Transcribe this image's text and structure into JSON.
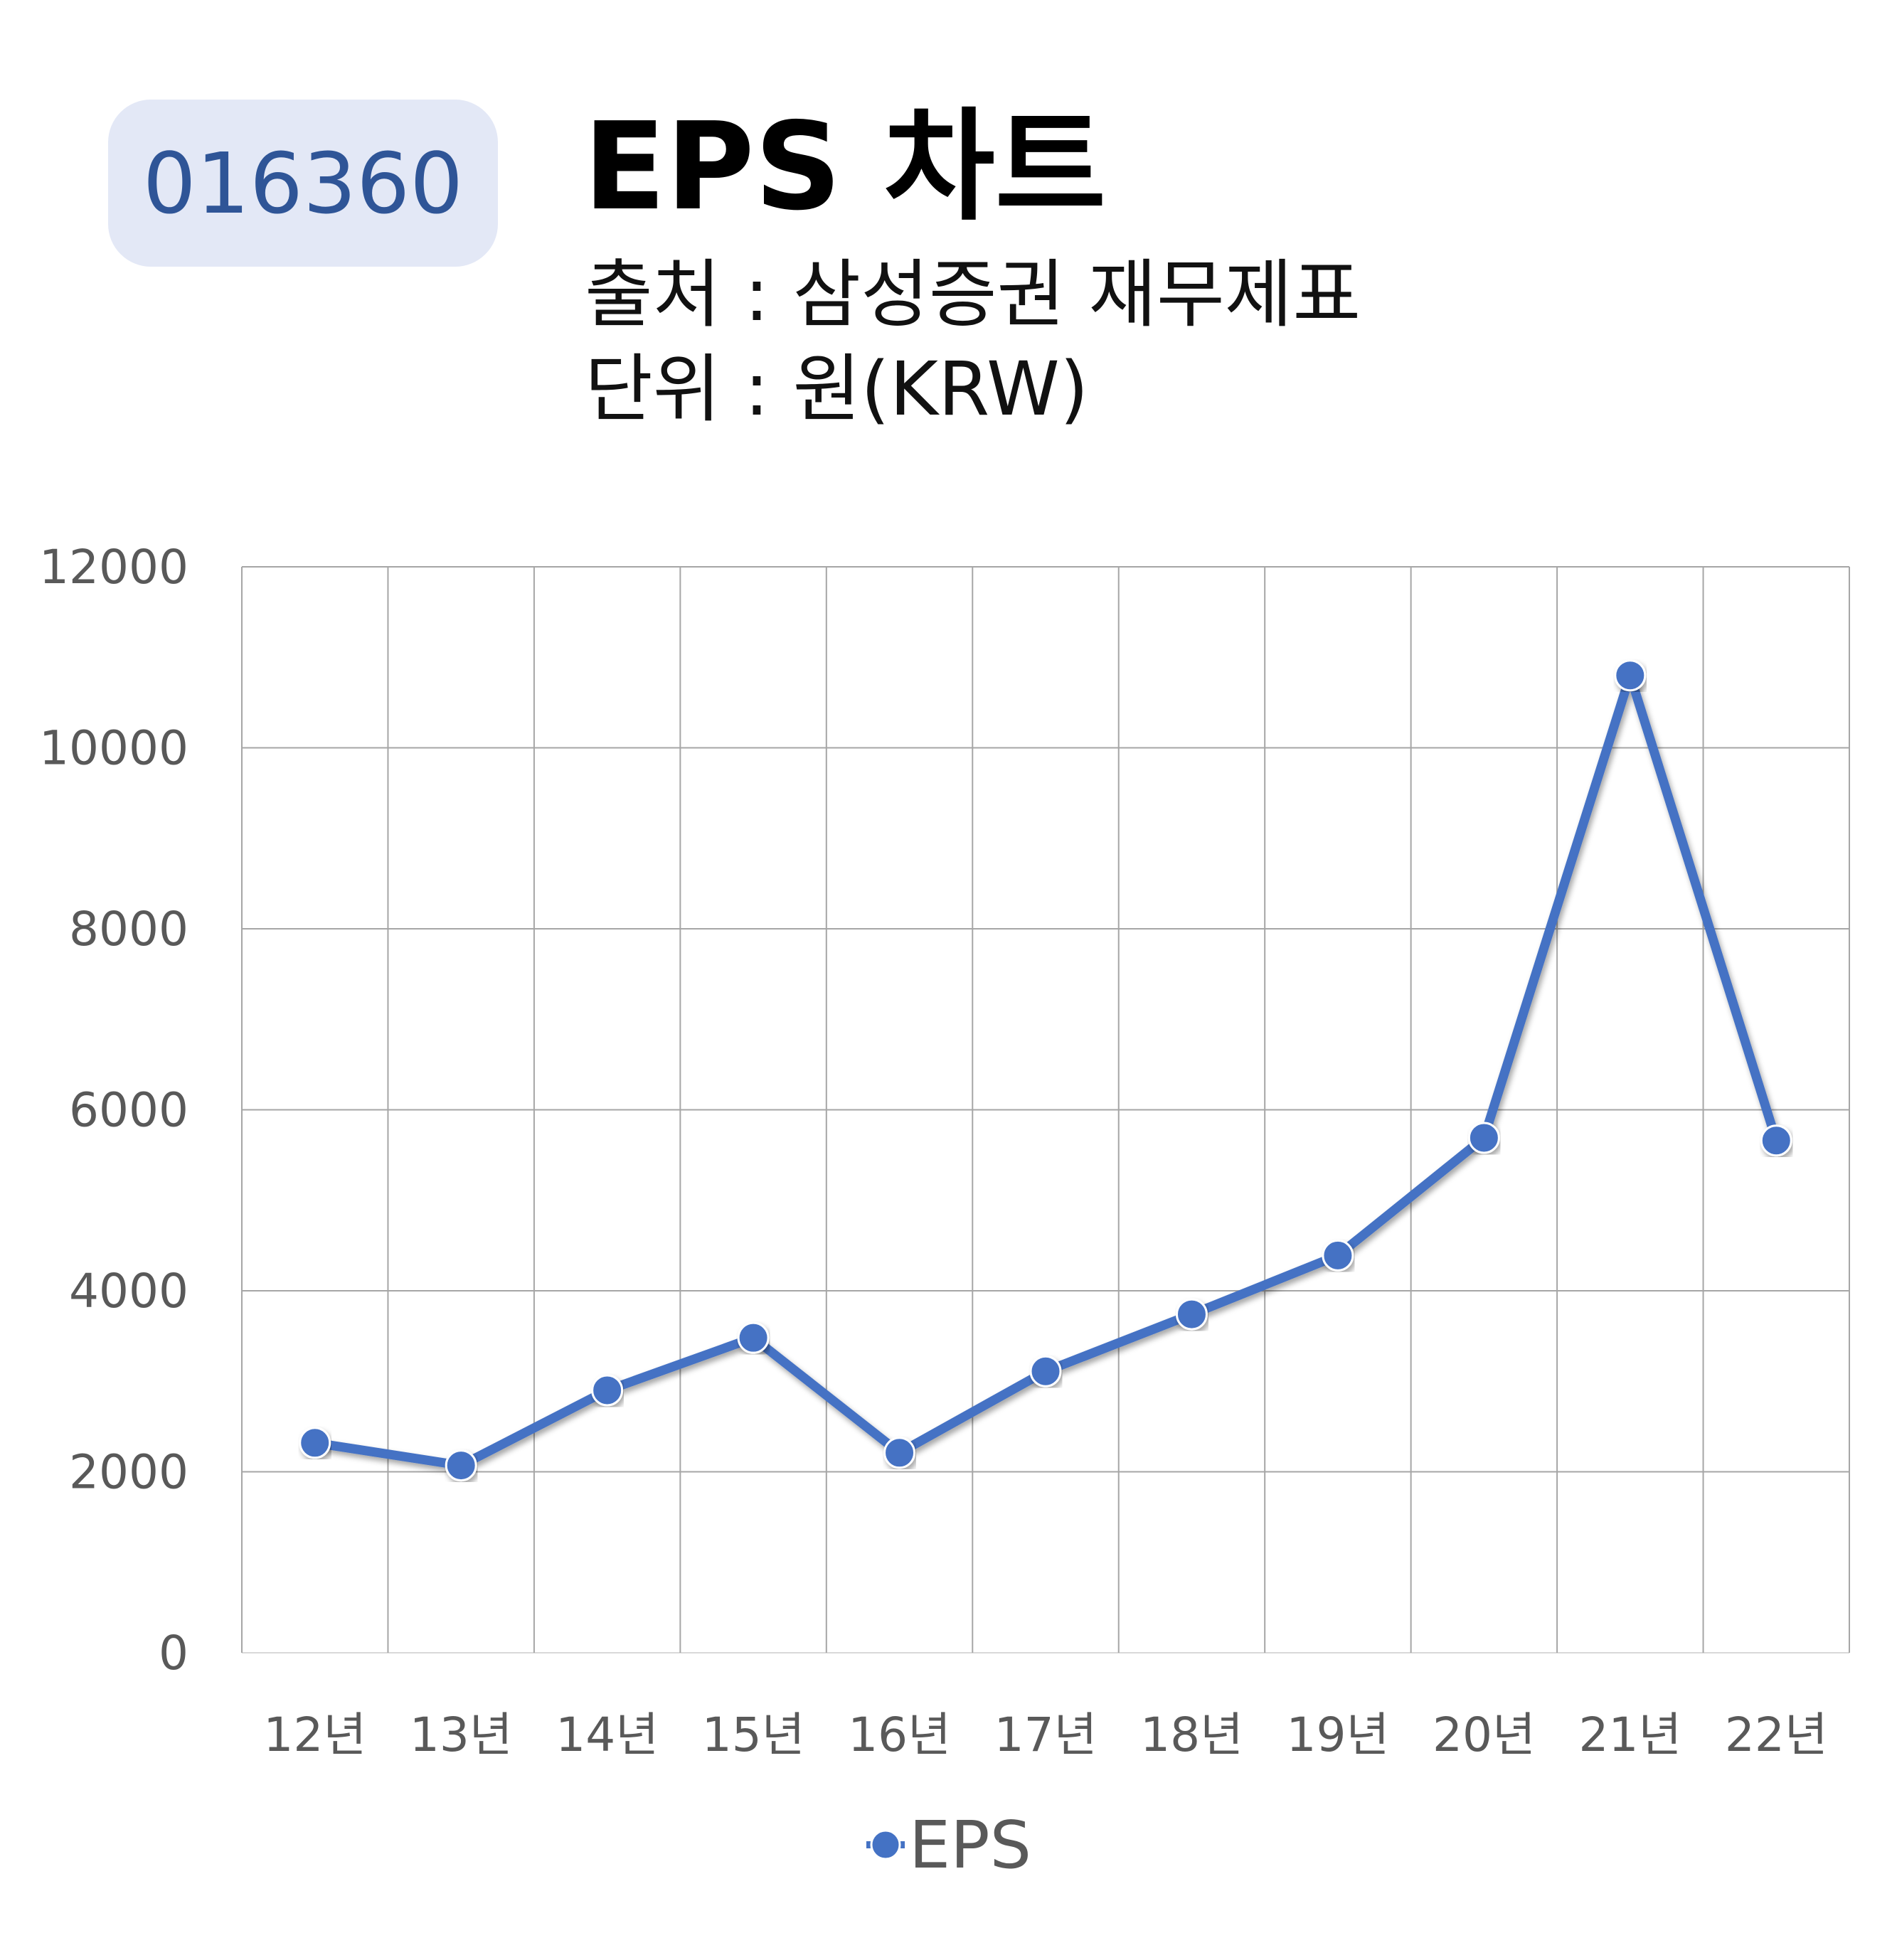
{
  "badge": {
    "code": "016360"
  },
  "header": {
    "title": "EPS 차트",
    "source": "출처 : 삼성증권 재무제표",
    "unit": "단위 : 원(KRW)"
  },
  "colors": {
    "line": "#4472c4",
    "badge_bg": "#e3e8f6",
    "badge_text": "#2f5597",
    "grid": "#bfbfbf"
  },
  "chart_data": {
    "type": "line",
    "categories": [
      "12년",
      "13년",
      "14년",
      "15년",
      "16년",
      "17년",
      "18년",
      "19년",
      "20년",
      "21년",
      "22년"
    ],
    "series": [
      {
        "name": "EPS",
        "values": [
          2320,
          2070,
          2900,
          3480,
          2210,
          3110,
          3740,
          4390,
          5690,
          10800,
          5660
        ]
      }
    ],
    "ylim": [
      0,
      12000
    ],
    "yticks": [
      "0",
      "2000",
      "4000",
      "6000",
      "8000",
      "10000",
      "12000"
    ],
    "grid": true,
    "legend": "bottom",
    "markers": true
  }
}
